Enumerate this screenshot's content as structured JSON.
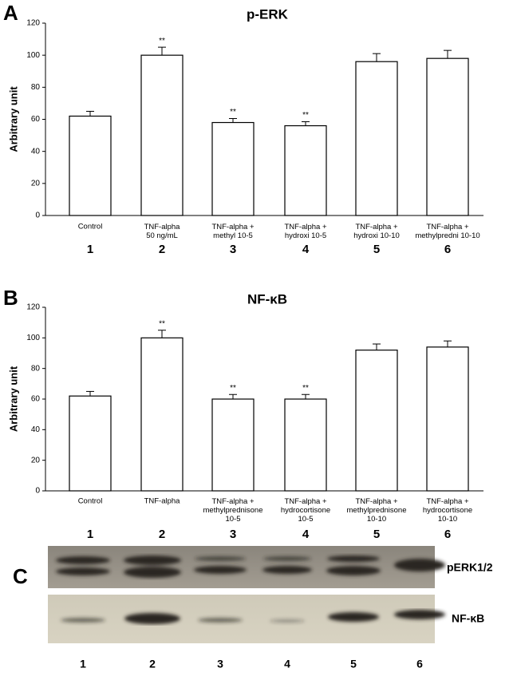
{
  "chart_data": [
    {
      "type": "bar",
      "panel_label": "A",
      "title": "p-ERK",
      "ylabel": "Arbitrary unit",
      "categories": [
        "Control",
        "TNF-alpha\n50 ng/mL",
        "TNF-alpha +\nmethyl 10-5",
        "TNF-alpha +\nhydroxi 10-5",
        "TNF-alpha +\nhydroxi 10-10",
        "TNF-alpha +\nmethylpredni 10-10"
      ],
      "lane_numbers": [
        "1",
        "2",
        "3",
        "4",
        "5",
        "6"
      ],
      "values": [
        62,
        100,
        58,
        56,
        96,
        98
      ],
      "errors": [
        3,
        5,
        2.5,
        2.5,
        5,
        5
      ],
      "annotations": [
        null,
        "**",
        "**",
        "**",
        null,
        null
      ],
      "color": "#ffffff",
      "ylim": [
        0,
        120
      ],
      "yticks": [
        0,
        20,
        40,
        60,
        80,
        100,
        120
      ]
    },
    {
      "type": "bar",
      "panel_label": "B",
      "title": "NF-κB",
      "ylabel": "Arbitrary unit",
      "categories": [
        "Control",
        "TNF-alpha",
        "TNF-alpha +\nmethylprednisone\n10-5",
        "TNF-alpha +\nhydrocortisone\n10-5",
        "TNF-alpha +\nmethylprednisone\n10-10",
        "TNF-alpha +\nhydrocortisone\n10-10"
      ],
      "lane_numbers": [
        "1",
        "2",
        "3",
        "4",
        "5",
        "6"
      ],
      "values": [
        62,
        100,
        60,
        60,
        92,
        94
      ],
      "errors": [
        3,
        5,
        3,
        3,
        4,
        4
      ],
      "annotations": [
        null,
        "**",
        "**",
        "**",
        null,
        null
      ],
      "color": "#ffffff",
      "ylim": [
        0,
        120
      ],
      "yticks": [
        0,
        20,
        40,
        60,
        80,
        100,
        120
      ]
    }
  ],
  "blot": {
    "panel_label": "C",
    "rows": [
      "pERK1/2",
      "NF-κB"
    ],
    "lanes": [
      "1",
      "2",
      "3",
      "4",
      "5",
      "6"
    ]
  }
}
